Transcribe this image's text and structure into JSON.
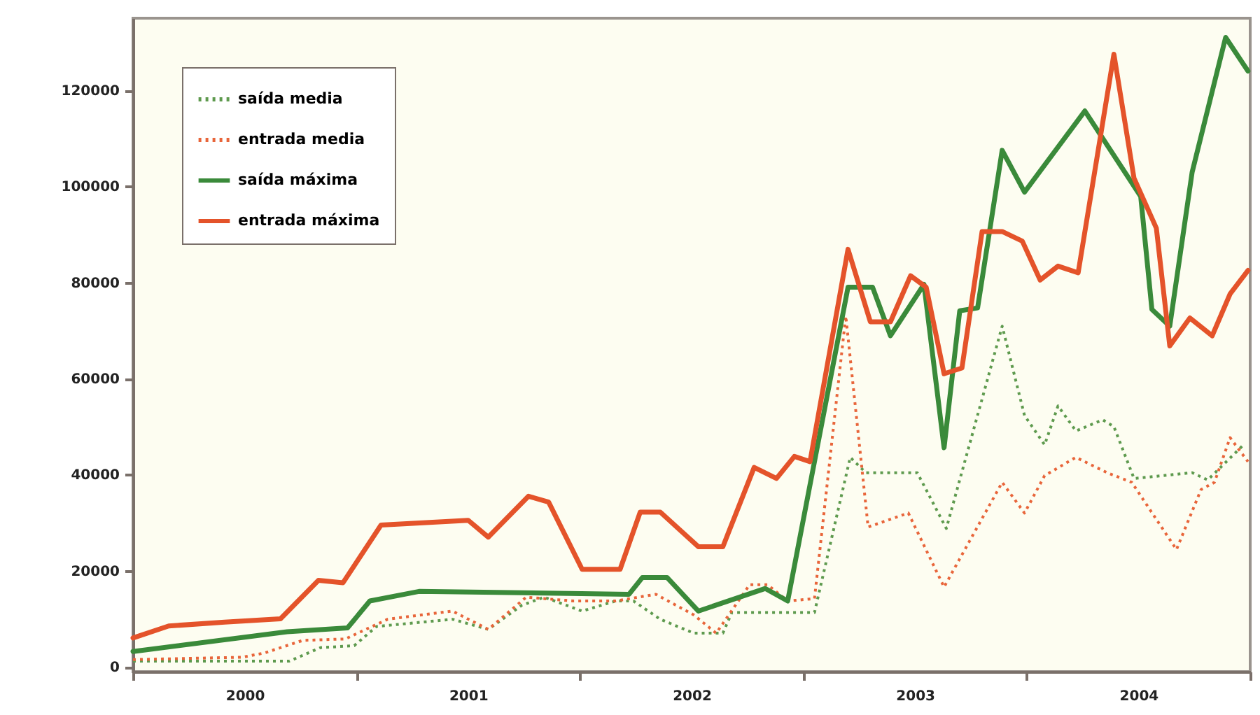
{
  "chart_data": {
    "type": "line",
    "xlim": [
      2000,
      2005
    ],
    "xticks": [
      {
        "value": 2000,
        "label": null
      },
      {
        "value": 2001,
        "label": null
      },
      {
        "value": 2002,
        "label": null
      },
      {
        "value": 2003,
        "label": null
      },
      {
        "value": 2004,
        "label": null
      },
      {
        "value": 2005,
        "label": null
      },
      {
        "value": 2000.5,
        "label": "2000"
      },
      {
        "value": 2001.5,
        "label": "2001"
      },
      {
        "value": 2002.5,
        "label": "2002"
      },
      {
        "value": 2003.5,
        "label": "2003"
      },
      {
        "value": 2004.5,
        "label": "2004"
      }
    ],
    "ylim": [
      -1000,
      135000
    ],
    "yticks": [
      0,
      20000,
      40000,
      60000,
      80000,
      100000,
      120000
    ],
    "grid": false,
    "legend": "top left",
    "marker": "none",
    "series": [
      {
        "name": "saída media",
        "color": "#5e9a4e",
        "line_style": "dotted",
        "x": [
          2000.0,
          2000.7,
          2000.84,
          2000.99,
          2001.09,
          2001.43,
          2001.59,
          2001.74,
          2001.84,
          2002.01,
          2002.16,
          2002.24,
          2002.36,
          2002.51,
          2002.64,
          2002.68,
          2003.05,
          2003.21,
          2003.28,
          2003.51,
          2003.64,
          2003.89,
          2003.99,
          2004.08,
          2004.14,
          2004.22,
          2004.34,
          2004.39,
          2004.48,
          2004.74,
          2004.81,
          2004.97
        ],
        "values": [
          1200,
          1200,
          4000,
          4400,
          8400,
          9900,
          7800,
          12800,
          14500,
          11600,
          13700,
          13700,
          9900,
          7000,
          7000,
          11300,
          11300,
          43600,
          40400,
          40400,
          28800,
          70900,
          52300,
          46200,
          54300,
          49100,
          51400,
          50000,
          39200,
          40400,
          38900,
          46200
        ]
      },
      {
        "name": "entrada media",
        "color": "#e8653a",
        "line_style": "dotted",
        "x": [
          2000.0,
          2000.49,
          2000.59,
          2000.76,
          2000.95,
          2001.14,
          2001.43,
          2001.59,
          2001.76,
          2001.97,
          2002.16,
          2002.34,
          2002.51,
          2002.61,
          2002.76,
          2002.84,
          2002.93,
          2003.05,
          2003.19,
          2003.29,
          2003.47,
          2003.63,
          2003.89,
          2003.99,
          2004.08,
          2004.22,
          2004.36,
          2004.47,
          2004.67,
          2004.78,
          2004.84,
          2004.91,
          2004.99
        ],
        "values": [
          1500,
          2000,
          2900,
          5500,
          5800,
          9900,
          11600,
          7800,
          14500,
          13700,
          13700,
          15100,
          10800,
          7000,
          17100,
          17100,
          13700,
          14200,
          73000,
          29100,
          32000,
          16600,
          38400,
          32000,
          39800,
          43600,
          40400,
          38400,
          24400,
          36900,
          38400,
          47700,
          42700
        ]
      },
      {
        "name": "saída máxima",
        "color": "#3a8a3a",
        "line_style": "solid",
        "x": [
          2000.0,
          2000.69,
          2000.96,
          2001.06,
          2001.28,
          2002.22,
          2002.28,
          2002.39,
          2002.53,
          2002.83,
          2002.93,
          2003.2,
          2003.31,
          2003.39,
          2003.54,
          2003.63,
          2003.7,
          2003.78,
          2003.89,
          2003.99,
          2004.26,
          2004.51,
          2004.56,
          2004.64,
          2004.74,
          2004.89,
          2004.99
        ],
        "values": [
          3200,
          7300,
          8100,
          13700,
          15700,
          15100,
          18600,
          18600,
          11600,
          16300,
          13700,
          79000,
          79000,
          68900,
          79600,
          45600,
          74100,
          74700,
          107500,
          98800,
          115700,
          97900,
          74400,
          70900,
          102900,
          131000,
          124000
        ]
      },
      {
        "name": "entrada máxima",
        "color": "#e4532a",
        "line_style": "solid",
        "x": [
          2000.0,
          2000.16,
          2000.41,
          2000.66,
          2000.83,
          2000.94,
          2001.11,
          2001.5,
          2001.59,
          2001.77,
          2001.86,
          2002.01,
          2002.18,
          2002.27,
          2002.36,
          2002.53,
          2002.64,
          2002.78,
          2002.88,
          2002.96,
          2003.03,
          2003.2,
          2003.3,
          2003.39,
          2003.48,
          2003.55,
          2003.63,
          2003.71,
          2003.8,
          2003.89,
          2003.98,
          2004.06,
          2004.14,
          2004.23,
          2004.39,
          2004.48,
          2004.58,
          2004.64,
          2004.73,
          2004.83,
          2004.91,
          2004.99
        ],
        "values": [
          6000,
          8500,
          9300,
          10000,
          18000,
          17500,
          29500,
          30500,
          27000,
          35500,
          34300,
          20300,
          20300,
          32200,
          32200,
          25000,
          25000,
          41500,
          39200,
          43800,
          42700,
          86900,
          71800,
          71800,
          81400,
          79000,
          61000,
          62200,
          90600,
          90600,
          88600,
          80500,
          83400,
          82000,
          127500,
          101700,
          91300,
          66800,
          72600,
          68900,
          77600,
          82500
        ]
      }
    ]
  }
}
